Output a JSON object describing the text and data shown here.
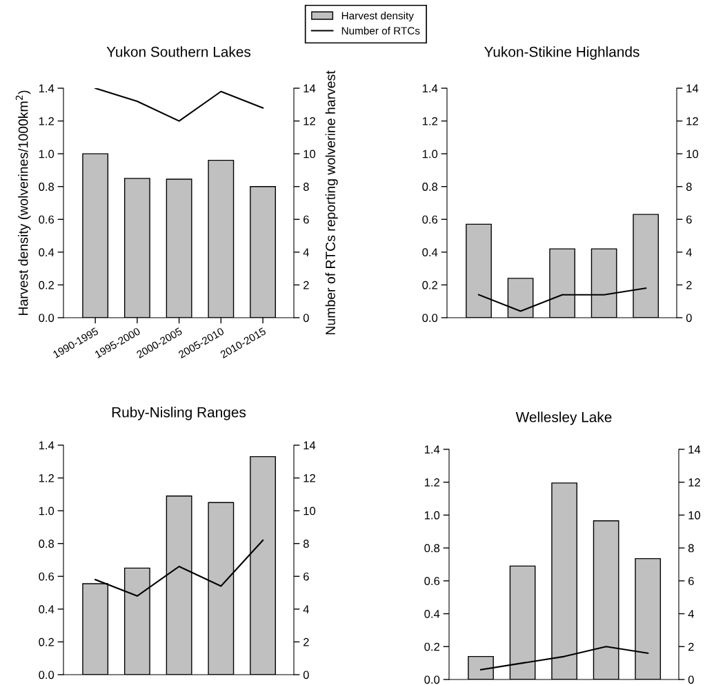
{
  "chart_data": [
    {
      "type": "bar",
      "title": "Yukon Southern Lakes",
      "ylabel": "Harvest density (wolverines/1000km$^{2}$)",
      "y2label": "Number of RTCs reporting wolverine harvest",
      "legend": "top right",
      "categories": [
        "1990-1995",
        "1995-2000",
        "2000-2005",
        "2005-2010",
        "2010-2015"
      ],
      "series": [
        {
          "name": "Harvest density",
          "color": "#c0c0c0",
          "values": [
            1.0,
            0.85,
            0.845,
            0.96,
            0.8
          ]
        },
        {
          "name": "Number of RTCs",
          "type": "line",
          "axis": "y2",
          "color": "#000000",
          "values": [
            14.0,
            13.2,
            12.0,
            13.8,
            12.8
          ]
        }
      ],
      "ylim": [
        0,
        1.4
      ],
      "yticks": [
        {
          "value": 0,
          "label": "0.0"
        },
        {
          "value": 0.2,
          "label": "0.2"
        },
        {
          "value": 0.4,
          "label": "0.4"
        },
        {
          "value": 0.6,
          "label": "0.6"
        },
        {
          "value": 0.8,
          "label": "0.8"
        },
        {
          "value": 1,
          "label": "1.0"
        },
        {
          "value": 1.2,
          "label": "1.2"
        },
        {
          "value": 1.4,
          "label": "1.4"
        }
      ],
      "y2lim": [
        0,
        14
      ],
      "y2ticks": [
        0,
        2,
        4,
        6,
        8,
        10,
        12,
        14
      ]
    },
    {
      "type": "bar",
      "title": "Ruby-Nisling Ranges",
      "categories": [
        null,
        null,
        null,
        null,
        null
      ],
      "series": [
        {
          "color": "#c0c0c0",
          "values": [
            0.555,
            0.65,
            1.09,
            1.05,
            1.33
          ]
        },
        {
          "type": "line",
          "axis": "y2",
          "color": "#000000",
          "values": [
            5.8,
            4.8,
            6.6,
            5.4,
            8.2
          ]
        }
      ],
      "ylim": [
        0,
        1.4
      ],
      "yticks": [
        {
          "value": 0,
          "label": "0.0"
        },
        {
          "value": 0.2,
          "label": "0.2"
        },
        {
          "value": 0.4,
          "label": "0.4"
        },
        {
          "value": 0.6,
          "label": "0.6"
        },
        {
          "value": 0.8,
          "label": "0.8"
        },
        {
          "value": 1,
          "label": "1.0"
        },
        {
          "value": 1.2,
          "label": "1.2"
        },
        {
          "value": 1.4,
          "label": "1.4"
        }
      ],
      "y2lim": [
        0,
        14
      ],
      "y2ticks": [
        0,
        2,
        4,
        6,
        8,
        10,
        12,
        14
      ]
    },
    {
      "type": "bar",
      "title": "Yukon-Stikine Highlands",
      "categories": [
        null,
        null,
        null,
        null,
        null
      ],
      "series": [
        {
          "color": "#c0c0c0",
          "values": [
            0.57,
            0.24,
            0.42,
            0.42,
            0.63
          ]
        },
        {
          "type": "line",
          "axis": "y2",
          "color": "#000000",
          "values": [
            1.4,
            0.4,
            1.4,
            1.4,
            1.8
          ]
        }
      ],
      "ylim": [
        0,
        1.4
      ],
      "yticks": [
        {
          "value": 0,
          "label": "0.0"
        },
        {
          "value": 0.2,
          "label": "0.2"
        },
        {
          "value": 0.4,
          "label": "0.4"
        },
        {
          "value": 0.6,
          "label": "0.6"
        },
        {
          "value": 0.8,
          "label": "0.8"
        },
        {
          "value": 1,
          "label": "1.0"
        },
        {
          "value": 1.2,
          "label": "1.2"
        },
        {
          "value": 1.4,
          "label": "1.4"
        }
      ],
      "y2lim": [
        0,
        14
      ],
      "y2ticks": [
        0,
        2,
        4,
        6,
        8,
        10,
        12,
        14
      ]
    },
    {
      "type": "bar",
      "title": "Wellesley Lake",
      "categories": [
        null,
        null,
        null,
        null,
        null
      ],
      "series": [
        {
          "color": "#c0c0c0",
          "values": [
            0.14,
            0.69,
            1.195,
            0.965,
            0.735
          ]
        },
        {
          "type": "line",
          "axis": "y2",
          "color": "#000000",
          "values": [
            0.6,
            1.0,
            1.4,
            2.0,
            1.6
          ]
        }
      ],
      "ylim": [
        0,
        1.4
      ],
      "yticks": [
        {
          "value": 0,
          "label": "0.0"
        },
        {
          "value": 0.2,
          "label": "0.2"
        },
        {
          "value": 0.4,
          "label": "0.4"
        },
        {
          "value": 0.6,
          "label": "0.6"
        },
        {
          "value": 0.8,
          "label": "0.8"
        },
        {
          "value": 1,
          "label": "1.0"
        },
        {
          "value": 1.2,
          "label": "1.2"
        },
        {
          "value": 1.4,
          "label": "1.4"
        }
      ],
      "y2lim": [
        0,
        14
      ],
      "y2ticks": [
        0,
        2,
        4,
        6,
        8,
        10,
        12,
        14
      ]
    }
  ]
}
